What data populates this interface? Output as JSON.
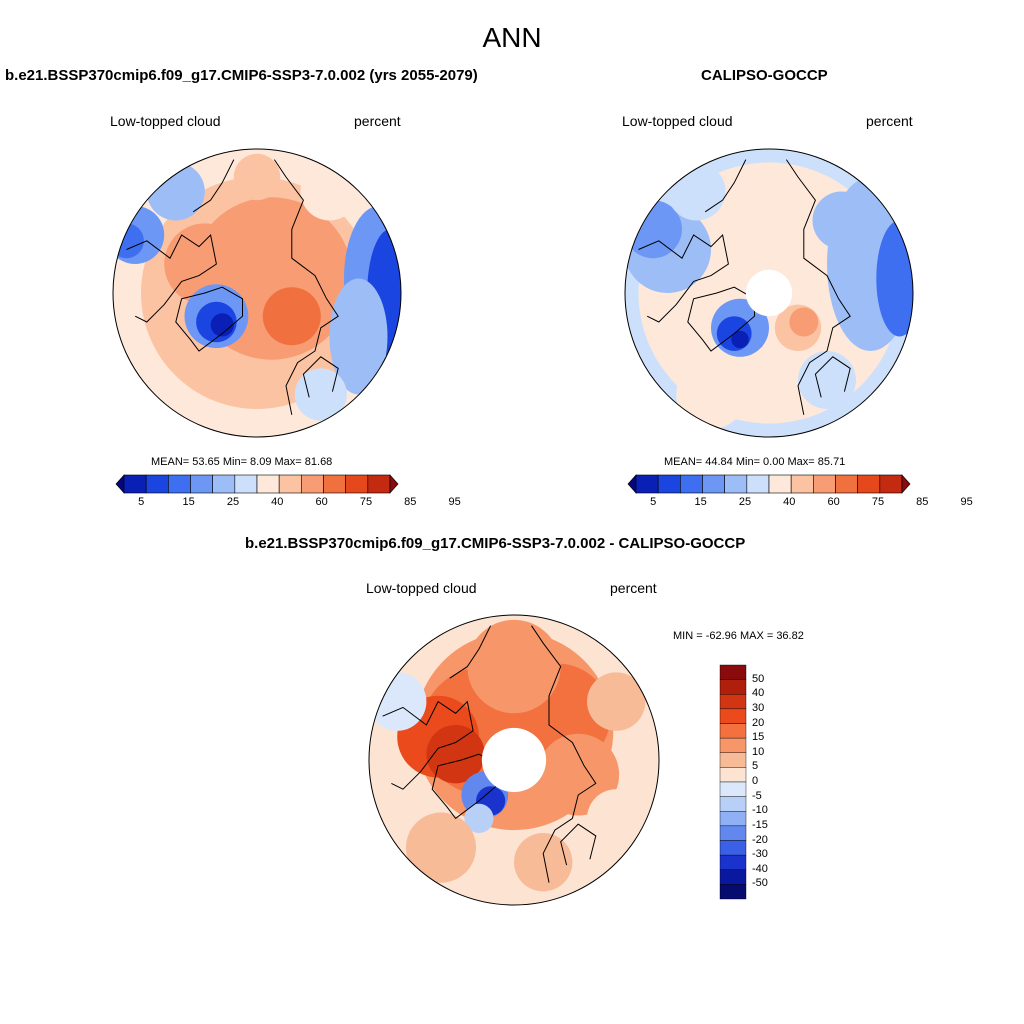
{
  "title": "ANN",
  "panels": [
    {
      "id": "model",
      "title": "b.e21.BSSP370cmip6.f09_g17.CMIP6-SSP3-7.0.002 (yrs 2055-2079)",
      "left_label": "Low-topped cloud",
      "right_label": "percent",
      "stats": "MEAN=  53.65  Min=   8.09  Max=  81.68",
      "colorbar_ticks": [
        "5",
        "15",
        "25",
        "40",
        "60",
        "75",
        "85",
        "95"
      ],
      "has_pole_hole": false
    },
    {
      "id": "obs",
      "title": "CALIPSO-GOCCP",
      "left_label": "Low-topped cloud",
      "right_label": "percent",
      "stats": "MEAN=  44.84  Min=   0.00  Max=  85.71",
      "colorbar_ticks": [
        "5",
        "15",
        "25",
        "40",
        "60",
        "75",
        "85",
        "95"
      ],
      "has_pole_hole": true
    }
  ],
  "diff": {
    "title": "b.e21.BSSP370cmip6.f09_g17.CMIP6-SSP3-7.0.002 - CALIPSO-GOCCP",
    "left_label": "Low-topped cloud",
    "right_label": "percent",
    "minmax": "MIN = -62.96 MAX =  36.82",
    "colorbar_ticks": [
      "50",
      "40",
      "30",
      "20",
      "15",
      "10",
      "5",
      "0",
      "-5",
      "-10",
      "-15",
      "-20",
      "-30",
      "-40",
      "-50"
    ]
  },
  "colors": {
    "abs_scale": [
      "#08077a",
      "#0a1fb5",
      "#1b45e0",
      "#3d6ff0",
      "#6d97f5",
      "#9dbdf7",
      "#cde0fb",
      "#fde8da",
      "#fbc3a2",
      "#f79c73",
      "#f1703f",
      "#e4481c",
      "#c42a0f",
      "#8a0b0b"
    ],
    "diff_scale": [
      "#8a0b0b",
      "#b01f0c",
      "#d23512",
      "#eb4a1c",
      "#f3703f",
      "#f69669",
      "#f8bb98",
      "#fce3d2",
      "#dbe8fb",
      "#b8cff8",
      "#8fb0f4",
      "#6288ee",
      "#3a60e6",
      "#1a33cc",
      "#0a18a0",
      "#060b70"
    ]
  }
}
